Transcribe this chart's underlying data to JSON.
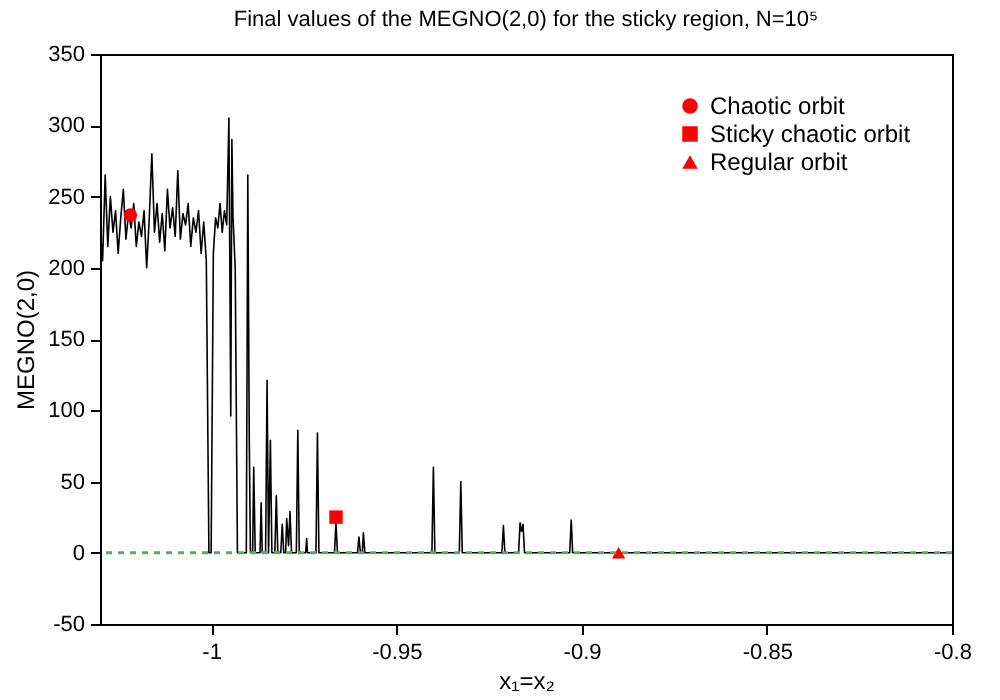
{
  "chart_data": {
    "type": "line",
    "title": "Final values of the MEGNO(2,0) for the sticky region, N=10⁵",
    "xlabel": "x₁=x₂",
    "ylabel": "MEGNO(2,0)",
    "xlim": [
      -1.03,
      -0.8
    ],
    "xticks": [
      -1,
      -0.95,
      -0.9,
      -0.85,
      -0.8
    ],
    "ylim": [
      -50,
      350
    ],
    "yticks": [
      -50,
      0,
      50,
      100,
      150,
      200,
      250,
      300,
      350
    ],
    "grid": false,
    "legend": "top right",
    "ref_lines": [
      {
        "axis": "y",
        "value": 0,
        "color": "#5fa85f",
        "line_style": "dashed"
      }
    ],
    "series": [
      {
        "type": "line",
        "color": "#000000",
        "x": [
          -1.03,
          -1.0293,
          -1.0286,
          -1.0279,
          -1.0272,
          -1.0265,
          -1.0258,
          -1.0251,
          -1.0244,
          -1.0237,
          -1.023,
          -1.0223,
          -1.0216,
          -1.0209,
          -1.0202,
          -1.0195,
          -1.0188,
          -1.0181,
          -1.0174,
          -1.0167,
          -1.016,
          -1.0153,
          -1.0146,
          -1.0139,
          -1.0132,
          -1.0125,
          -1.0118,
          -1.0111,
          -1.0104,
          -1.0097,
          -1.009,
          -1.0083,
          -1.0076,
          -1.0069,
          -1.0062,
          -1.0055,
          -1.0048,
          -1.0041,
          -1.0034,
          -1.0027,
          -1.002,
          -1.0013,
          -1.0006,
          -1.0,
          -0.9994,
          -0.9988,
          -0.9982,
          -0.9976,
          -0.997,
          -0.9964,
          -0.9958,
          -0.9952,
          -0.9947,
          -0.9944,
          -0.9941,
          -0.9935,
          -0.9929,
          -0.9905,
          -0.9901,
          -0.9897,
          -0.9894,
          -0.9888,
          -0.9885,
          -0.9881,
          -0.9868,
          -0.9865,
          -0.9862,
          -0.9853,
          -0.9849,
          -0.9845,
          -0.984,
          -0.9836,
          -0.9828,
          -0.9824,
          -0.982,
          -0.9812,
          -0.9808,
          -0.9804,
          -0.9799,
          -0.9796,
          -0.9791,
          -0.9787,
          -0.9783,
          -0.977,
          -0.9766,
          -0.9762,
          -0.9745,
          -0.9742,
          -0.974,
          -0.9717,
          -0.9713,
          -0.9709,
          -0.9667,
          -0.9663,
          -0.9659,
          -0.9605,
          -0.9601,
          -0.9597,
          -0.9592,
          -0.9589,
          -0.9585,
          -0.9404,
          -0.94,
          -0.9396,
          -0.933,
          -0.9326,
          -0.9322,
          -0.9215,
          -0.9211,
          -0.9207,
          -0.917,
          -0.9166,
          -0.9162,
          -0.9158,
          -0.9154,
          -0.9032,
          -0.9028,
          -0.9024,
          -0.8
        ],
        "values": [
          230,
          205,
          265,
          215,
          250,
          225,
          240,
          210,
          235,
          255,
          220,
          238,
          228,
          245,
          215,
          232,
          222,
          240,
          200,
          235,
          280,
          225,
          245,
          218,
          238,
          212,
          255,
          228,
          242,
          222,
          268,
          220,
          238,
          230,
          245,
          215,
          235,
          225,
          240,
          210,
          232,
          205,
          0,
          0,
          210,
          235,
          228,
          245,
          225,
          240,
          230,
          305,
          96,
          290,
          236,
          200,
          0,
          0,
          265,
          79,
          0,
          0,
          60,
          0,
          0,
          35,
          0,
          0,
          121,
          0,
          79,
          0,
          0,
          40,
          0,
          0,
          20,
          0,
          0,
          24,
          5,
          29,
          0,
          0,
          86,
          0,
          0,
          10,
          0,
          0,
          84,
          0,
          0,
          21,
          0,
          0,
          11,
          0,
          0,
          14,
          0,
          0,
          60,
          0,
          0,
          50,
          0,
          0,
          19,
          0,
          0,
          21,
          15,
          20,
          0,
          0,
          23,
          0,
          0
        ]
      },
      {
        "type": "scatter",
        "name": "Chaotic orbit",
        "color": "#ff0000",
        "marker": "circle",
        "x": [
          -1.0218
        ],
        "values": [
          237
        ]
      },
      {
        "type": "scatter",
        "name": "Sticky chaotic orbit",
        "color": "#ff0000",
        "marker": "square",
        "x": [
          -0.9663
        ],
        "values": [
          25
        ]
      },
      {
        "type": "scatter",
        "name": "Regular orbit",
        "color": "#ff0000",
        "marker": "triangle",
        "x": [
          -0.89
        ],
        "values": [
          0
        ]
      }
    ]
  }
}
